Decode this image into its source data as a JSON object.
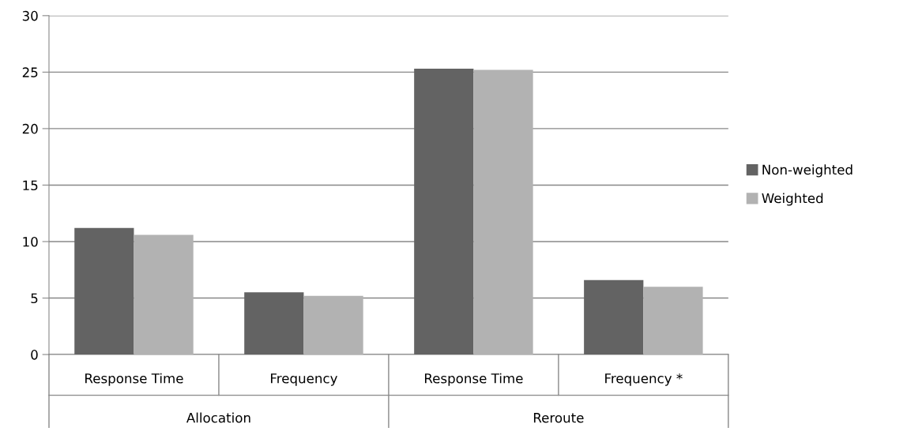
{
  "chart_data": {
    "type": "bar",
    "categories": [
      "Response Time",
      "Frequency",
      "Response Time",
      "Frequency *"
    ],
    "series": [
      {
        "name": "Non-weighted",
        "color": "#636363",
        "values": [
          11.2,
          5.5,
          25.3,
          6.6
        ]
      },
      {
        "name": "Weighted",
        "color": "#b2b2b2",
        "values": [
          10.6,
          5.2,
          25.2,
          6.0
        ]
      }
    ],
    "annotations": [
      "Allocation",
      "Reroute"
    ],
    "ylim": [
      0,
      30
    ],
    "yticks": [
      0,
      5,
      10,
      15,
      20,
      25,
      30
    ],
    "grid": "y",
    "legend": "right"
  }
}
